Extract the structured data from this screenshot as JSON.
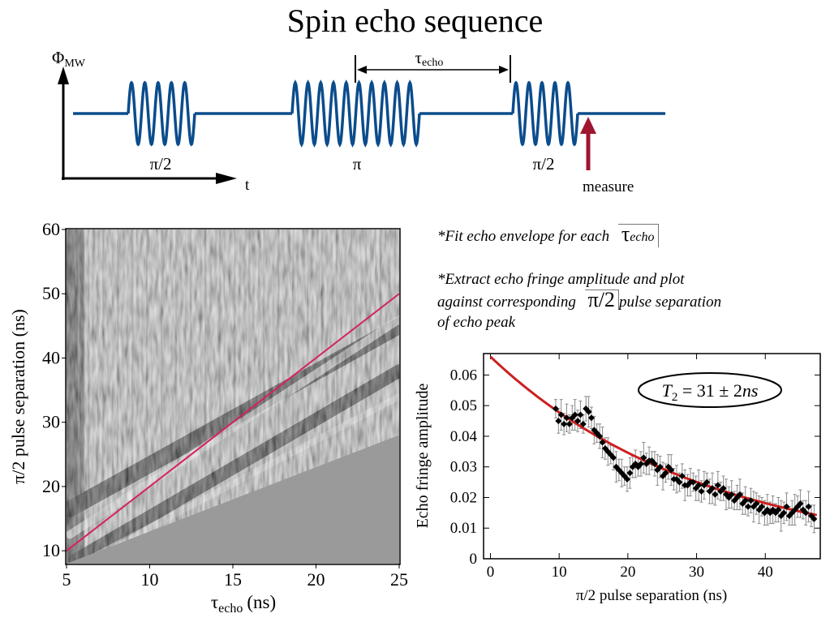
{
  "slide": {
    "title": "Spin echo sequence",
    "notes": {
      "note1_text": "*Fit echo envelope for each",
      "note1_symbol": "τ",
      "note1_symbol_sub": "echo",
      "note2_line1": "*Extract echo fringe amplitude and plot",
      "note2_line2": "against corresponding",
      "note2_symbol": "π/2",
      "note2_line2_end": "pulse separation",
      "note2_line3": "of echo peak"
    }
  },
  "diagram": {
    "y_axis_label": "Φ",
    "y_axis_sub": "MW",
    "x_axis_label": "t",
    "pulse_labels": [
      "π/2",
      "π",
      "π/2"
    ],
    "interval_label": "τ",
    "interval_sub": "echo",
    "measure_label": "measure",
    "colors": {
      "waveform": "#0b4c8c",
      "measure_arrow": "#a01530"
    }
  },
  "chart_data": [
    {
      "type": "heatmap",
      "xlabel_main": "τ",
      "xlabel_sub": "echo",
      "xlabel_unit": "(ns)",
      "ylabel": "π/2 pulse separation (ns)",
      "xlim": [
        5,
        25
      ],
      "ylim": [
        8,
        60
      ],
      "xticks": [
        5,
        10,
        15,
        20,
        25
      ],
      "yticks": [
        10,
        20,
        30,
        40,
        50,
        60
      ],
      "fit_line": {
        "x": [
          5,
          25
        ],
        "y": [
          10,
          50
        ],
        "color": "#d4245a"
      },
      "masked_region_color": "#9a9a9a"
    },
    {
      "type": "scatter",
      "xlabel": "π/2 pulse separation (ns)",
      "ylabel": "Echo fringe amplitude",
      "xlim": [
        -1,
        48
      ],
      "ylim": [
        0,
        0.067
      ],
      "xticks": [
        0,
        10,
        20,
        30,
        40
      ],
      "yticks": [
        0,
        0.01,
        0.02,
        0.03,
        0.04,
        0.05,
        0.06
      ],
      "ytick_labels": [
        "0",
        "0.01",
        "0.02",
        "0.03",
        "0.04",
        "0.05",
        "0.06"
      ],
      "annotation": "T2 = 31 ± 2ns",
      "annotation_main": "T",
      "annotation_sub": "2",
      "annotation_rest": " = 31 ± 2",
      "annotation_unit": "ns",
      "fit": {
        "name": "fit",
        "color": "#cc1f1f",
        "amplitude": 0.066,
        "t2": 31,
        "x_range": [
          0,
          47.5
        ]
      },
      "series": [
        {
          "name": "data",
          "x": [
            9.5,
            9.9,
            10.3,
            10.7,
            11.1,
            11.5,
            11.9,
            12.3,
            12.7,
            13.1,
            13.5,
            13.9,
            14.3,
            14.7,
            15.1,
            15.5,
            15.9,
            16.3,
            16.7,
            17.1,
            17.5,
            17.9,
            18.3,
            18.7,
            19.1,
            19.5,
            19.9,
            20.3,
            20.7,
            21.1,
            21.5,
            21.9,
            22.3,
            22.7,
            23.1,
            23.5,
            23.9,
            24.3,
            24.7,
            25.1,
            25.5,
            25.9,
            26.3,
            26.7,
            27.1,
            27.5,
            27.9,
            28.3,
            28.7,
            29.1,
            29.5,
            29.9,
            30.3,
            30.7,
            31.1,
            31.5,
            31.9,
            32.3,
            32.7,
            33.1,
            33.5,
            33.9,
            34.3,
            34.7,
            35.1,
            35.5,
            35.9,
            36.3,
            36.7,
            37.1,
            37.5,
            37.9,
            38.3,
            38.7,
            39.1,
            39.5,
            39.9,
            40.3,
            40.7,
            41.1,
            41.5,
            41.9,
            42.3,
            42.7,
            43.1,
            43.5,
            43.9,
            44.3,
            44.7,
            45.1,
            45.5,
            45.9,
            46.3,
            46.7,
            47.1
          ],
          "y": [
            0.049,
            0.045,
            0.047,
            0.044,
            0.046,
            0.044,
            0.046,
            0.047,
            0.045,
            0.047,
            0.044,
            0.049,
            0.048,
            0.046,
            0.042,
            0.041,
            0.04,
            0.038,
            0.036,
            0.035,
            0.034,
            0.033,
            0.03,
            0.029,
            0.028,
            0.027,
            0.026,
            0.028,
            0.03,
            0.031,
            0.03,
            0.031,
            0.033,
            0.031,
            0.032,
            0.032,
            0.031,
            0.029,
            0.03,
            0.027,
            0.028,
            0.03,
            0.029,
            0.026,
            0.026,
            0.025,
            0.027,
            0.024,
            0.024,
            0.025,
            0.025,
            0.023,
            0.024,
            0.022,
            0.024,
            0.025,
            0.022,
            0.023,
            0.021,
            0.024,
            0.022,
            0.023,
            0.021,
            0.02,
            0.021,
            0.019,
            0.02,
            0.021,
            0.018,
            0.019,
            0.017,
            0.019,
            0.017,
            0.018,
            0.016,
            0.017,
            0.015,
            0.016,
            0.015,
            0.016,
            0.015,
            0.016,
            0.014,
            0.015,
            0.017,
            0.014,
            0.015,
            0.016,
            0.017,
            0.018,
            0.016,
            0.015,
            0.017,
            0.014,
            0.013
          ],
          "err": 0.003
        }
      ]
    }
  ]
}
